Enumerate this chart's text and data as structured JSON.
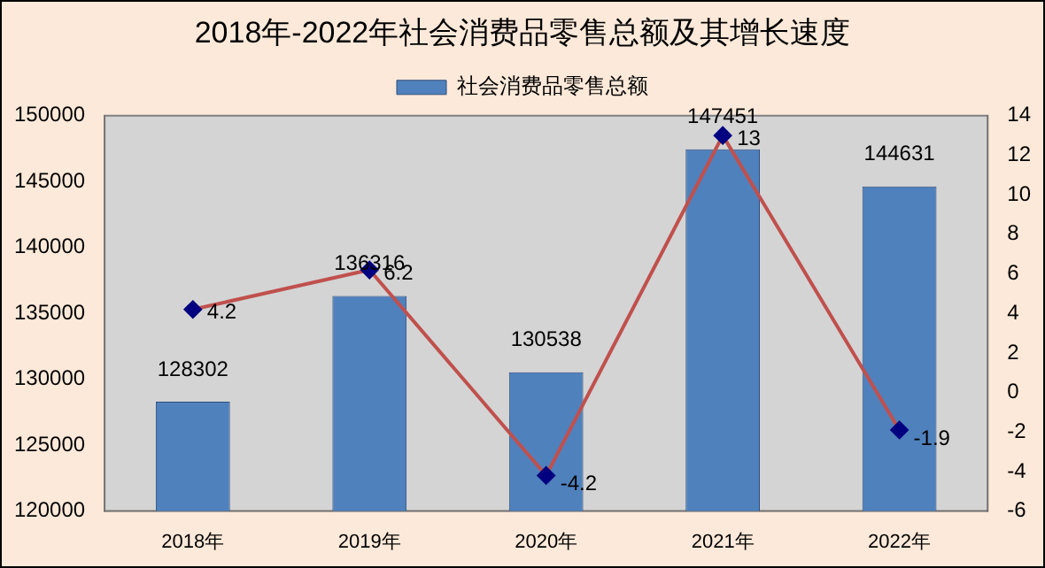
{
  "chart_data": {
    "type": "bar",
    "title": "2018年-2022年社会消费品零售总额及其增长速度",
    "categories": [
      "2018年",
      "2019年",
      "2020年",
      "2021年",
      "2022年"
    ],
    "series": [
      {
        "name": "社会消费品零售总额",
        "type": "bar",
        "color": "#4f81bd",
        "values": [
          128302,
          136316,
          130538,
          147451,
          144631
        ]
      },
      {
        "type": "line",
        "axis": "y2",
        "color": "#c0504d",
        "values": [
          4.2,
          6.2,
          -4.2,
          13,
          -1.9
        ]
      }
    ],
    "ylim": [
      120000,
      150000
    ],
    "yticks": [
      120000,
      125000,
      130000,
      135000,
      140000,
      145000,
      150000
    ],
    "y2lim": [
      -6,
      14
    ],
    "y2ticks": [
      -6,
      -4,
      -2,
      0,
      2,
      4,
      6,
      8,
      10,
      12,
      14
    ],
    "data_labels": true,
    "legend": "top",
    "marker": "diamond",
    "grid": false
  }
}
